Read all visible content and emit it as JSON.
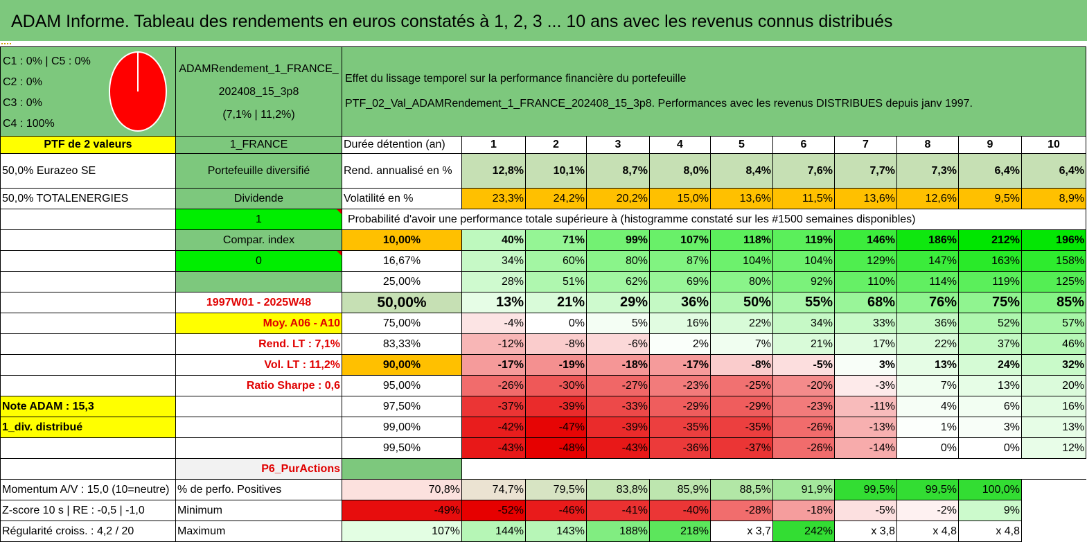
{
  "title": "ADAM Informe. Tableau des rendements en euros constatés à 1, 2, 3 ... 10 ans avec les revenus connus distribués",
  "allocation": {
    "lines": [
      "C1 : 0% | C5 : 0%",
      "C2 : 0%",
      "C3 : 0%",
      "C4 : 100%"
    ],
    "pie": {
      "C4": 100,
      "C1": 0,
      "C2": 0,
      "C3": 0,
      "C5": 0
    }
  },
  "portfolio": {
    "name": "ADAMRendement_1_FRANCE_202408_15_3p8",
    "stats": "(7,1% | 11,2%)"
  },
  "description": {
    "line1": "Effet du lissage temporel sur la performance financière du portefeuille",
    "line2": "PTF_02_Val_ADAMRendement_1_FRANCE_202408_15_3p8. Performances avec les revenus DISTRIBUES depuis janv 1997."
  },
  "labels": {
    "ptf_count": "PTF de 2 valeurs",
    "country": "1_FRANCE",
    "holding_period": "Durée détention (an)",
    "holding_1": "50,0% Eurazeo SE",
    "diversified": "Portefeuille diversifié",
    "annual_return": "Rend. annualisé en %",
    "holding_2": "50,0% TOTALENERGIES",
    "dividend": "Dividende",
    "volatility": "Volatilité en %",
    "flag_1": "1",
    "prob_title": "Probabilité d'avoir une performance totale supérieure à (histogramme constaté sur les #1500 semaines disponibles)",
    "compar_index": "Compar. index",
    "flag_0": "0",
    "period": "1997W01 - 2025W48",
    "moy": "Moy. A06 - A10",
    "rend_lt": "Rend. LT : 7,1%",
    "vol_lt": "Vol. LT : 11,2%",
    "sharpe": "Ratio Sharpe : 0,6",
    "note_adam": "Note ADAM : 15,3",
    "div_distrib": "1_div. distribué",
    "p6": "P6_PurActions",
    "momentum": "Momentum A/V : 15,0 (10=neutre)",
    "zscore": "Z-score 10 s | RE : -0,5 | -1,0",
    "regularite": "Régularité croiss. : 4,2 / 20",
    "perf_pos": "% de perfo. Positives",
    "minimum": "Minimum",
    "maximum": "Maximum"
  },
  "years": [
    "1",
    "2",
    "3",
    "4",
    "5",
    "6",
    "7",
    "8",
    "9",
    "10"
  ],
  "rend": [
    "12,8%",
    "10,1%",
    "8,7%",
    "8,0%",
    "8,4%",
    "7,6%",
    "7,7%",
    "7,3%",
    "6,4%",
    "6,4%"
  ],
  "vol": [
    "23,3%",
    "24,2%",
    "20,2%",
    "15,0%",
    "13,6%",
    "11,5%",
    "13,6%",
    "12,6%",
    "9,5%",
    "8,9%"
  ],
  "quantiles": [
    {
      "label": "10,00%",
      "values": [
        "40%",
        "71%",
        "99%",
        "107%",
        "118%",
        "119%",
        "146%",
        "186%",
        "212%",
        "196%"
      ]
    },
    {
      "label": "16,67%",
      "values": [
        "34%",
        "60%",
        "80%",
        "87%",
        "104%",
        "104%",
        "129%",
        "147%",
        "163%",
        "158%"
      ]
    },
    {
      "label": "25,00%",
      "values": [
        "28%",
        "51%",
        "62%",
        "69%",
        "80%",
        "92%",
        "110%",
        "114%",
        "119%",
        "125%"
      ]
    },
    {
      "label": "50,00%",
      "values": [
        "13%",
        "21%",
        "29%",
        "36%",
        "50%",
        "55%",
        "68%",
        "76%",
        "75%",
        "85%"
      ]
    },
    {
      "label": "75,00%",
      "values": [
        "-4%",
        "0%",
        "5%",
        "16%",
        "22%",
        "34%",
        "33%",
        "36%",
        "52%",
        "57%"
      ]
    },
    {
      "label": "83,33%",
      "values": [
        "-12%",
        "-8%",
        "-6%",
        "2%",
        "7%",
        "21%",
        "17%",
        "22%",
        "37%",
        "46%"
      ]
    },
    {
      "label": "90,00%",
      "values": [
        "-17%",
        "-19%",
        "-18%",
        "-17%",
        "-8%",
        "-5%",
        "3%",
        "13%",
        "24%",
        "32%"
      ]
    },
    {
      "label": "95,00%",
      "values": [
        "-26%",
        "-30%",
        "-27%",
        "-23%",
        "-25%",
        "-20%",
        "-3%",
        "7%",
        "13%",
        "20%"
      ]
    },
    {
      "label": "97,50%",
      "values": [
        "-37%",
        "-39%",
        "-33%",
        "-29%",
        "-29%",
        "-23%",
        "-11%",
        "4%",
        "6%",
        "16%"
      ]
    },
    {
      "label": "99,00%",
      "values": [
        "-42%",
        "-47%",
        "-39%",
        "-35%",
        "-35%",
        "-26%",
        "-13%",
        "1%",
        "3%",
        "13%"
      ]
    },
    {
      "label": "99,50%",
      "values": [
        "-43%",
        "-48%",
        "-43%",
        "-36%",
        "-37%",
        "-26%",
        "-14%",
        "0%",
        "0%",
        "12%"
      ]
    }
  ],
  "perf_pos": [
    "70,8%",
    "74,7%",
    "79,5%",
    "83,8%",
    "85,9%",
    "88,5%",
    "91,9%",
    "99,5%",
    "99,5%",
    "100,0%"
  ],
  "minimum": [
    "-49%",
    "-52%",
    "-46%",
    "-41%",
    "-40%",
    "-28%",
    "-18%",
    "-5%",
    "-2%",
    "9%"
  ],
  "maximum": [
    "107%",
    "144%",
    "143%",
    "188%",
    "218%",
    "x 3,7",
    "242%",
    "x 3,8",
    "x 4,8",
    "x 4,8"
  ],
  "colors": {
    "header_green": "#7dc87d",
    "bright_green": "#00ee00",
    "yellow": "#ffff00",
    "orange": "#ffc000",
    "rend_green": "#c6e0b4",
    "label_red": "#e00000",
    "pie_red": "#ff0000"
  }
}
